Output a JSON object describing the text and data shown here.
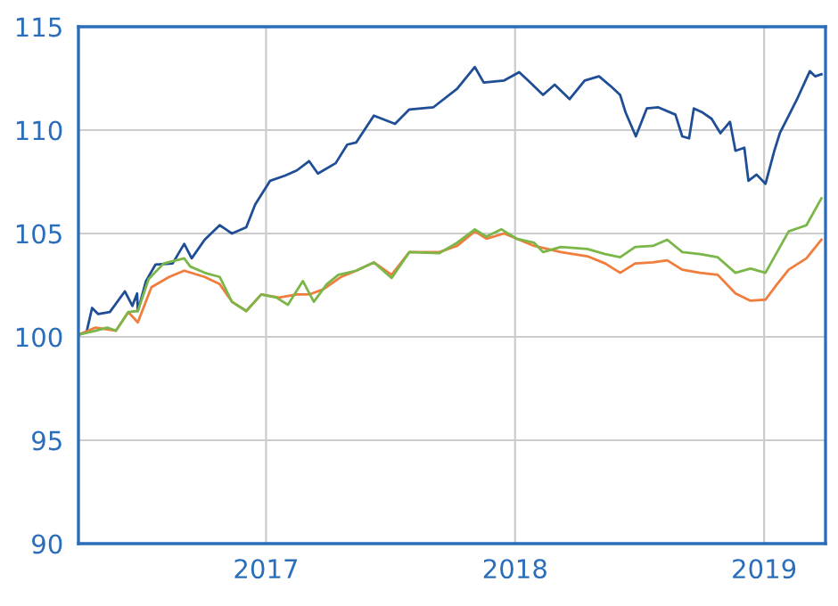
{
  "chart_data": {
    "type": "line",
    "xlim": [
      "2016-04-01",
      "2019-04-01"
    ],
    "ylim": [
      90,
      115
    ],
    "yticks": [
      90,
      95,
      100,
      105,
      110,
      115
    ],
    "xticks": [
      {
        "value": "2017-01-01",
        "label": "2017"
      },
      {
        "value": "2018-01-01",
        "label": "2018"
      },
      {
        "value": "2019-01-01",
        "label": "2019"
      }
    ],
    "grid": true,
    "legend": false,
    "marker": "none",
    "line_style": "solid",
    "series": [
      {
        "color": "#1f4e96",
        "x": [
          "2016-04-01",
          "2016-04-13",
          "2016-04-21",
          "2016-04-30",
          "2016-05-17",
          "2016-06-08",
          "2016-06-19",
          "2016-06-26",
          "2016-06-27",
          "2016-07-09",
          "2016-07-23",
          "2016-08-17",
          "2016-09-03",
          "2016-09-14",
          "2016-10-03",
          "2016-10-25",
          "2016-11-12",
          "2016-12-03",
          "2016-12-16",
          "2017-01-07",
          "2017-01-29",
          "2017-02-15",
          "2017-03-05",
          "2017-03-18",
          "2017-04-13",
          "2017-04-30",
          "2017-05-13",
          "2017-06-08",
          "2017-07-09",
          "2017-07-30",
          "2017-09-03",
          "2017-10-08",
          "2017-11-03",
          "2017-11-16",
          "2017-12-16",
          "2018-01-07",
          "2018-01-20",
          "2018-02-11",
          "2018-02-28",
          "2018-03-22",
          "2018-04-13",
          "2018-05-04",
          "2018-05-22",
          "2018-06-04",
          "2018-06-12",
          "2018-06-27",
          "2018-07-13",
          "2018-07-30",
          "2018-08-24",
          "2018-09-03",
          "2018-09-13",
          "2018-09-20",
          "2018-10-03",
          "2018-10-16",
          "2018-10-29",
          "2018-11-12",
          "2018-11-20",
          "2018-12-03",
          "2018-12-09",
          "2018-12-21",
          "2019-01-03",
          "2019-01-16",
          "2019-01-24",
          "2019-02-06",
          "2019-02-19",
          "2019-03-09",
          "2019-03-17",
          "2019-03-26"
        ],
        "values": [
          100.1,
          100.25,
          101.4,
          101.1,
          101.2,
          102.2,
          101.5,
          102.1,
          101.25,
          102.7,
          103.5,
          103.55,
          104.5,
          103.8,
          104.7,
          105.4,
          105.0,
          105.3,
          106.4,
          107.55,
          107.8,
          108.05,
          108.5,
          107.9,
          108.4,
          109.3,
          109.4,
          110.7,
          110.3,
          111.0,
          111.1,
          112.0,
          113.05,
          112.3,
          112.4,
          112.8,
          112.4,
          111.7,
          112.2,
          111.5,
          112.4,
          112.6,
          112.1,
          111.7,
          110.85,
          109.7,
          111.05,
          111.1,
          110.75,
          109.7,
          109.6,
          111.05,
          110.85,
          110.55,
          109.85,
          110.4,
          109.0,
          109.15,
          107.55,
          107.85,
          107.4,
          109.0,
          109.85,
          110.7,
          111.55,
          112.85,
          112.6,
          112.7
        ]
      },
      {
        "color": "#f07d3c",
        "x": [
          "2016-04-01",
          "2016-04-26",
          "2016-05-26",
          "2016-06-13",
          "2016-06-27",
          "2016-07-17",
          "2016-08-12",
          "2016-09-03",
          "2016-10-03",
          "2016-10-25",
          "2016-11-12",
          "2016-12-03",
          "2016-12-25",
          "2017-01-20",
          "2017-02-15",
          "2017-03-05",
          "2017-03-26",
          "2017-04-21",
          "2017-05-13",
          "2017-06-08",
          "2017-07-04",
          "2017-07-30",
          "2017-09-12",
          "2017-10-08",
          "2017-11-03",
          "2017-11-20",
          "2017-12-16",
          "2018-01-03",
          "2018-01-29",
          "2018-03-09",
          "2018-04-17",
          "2018-05-13",
          "2018-06-04",
          "2018-06-26",
          "2018-07-22",
          "2018-08-12",
          "2018-09-03",
          "2018-09-29",
          "2018-10-25",
          "2018-11-20",
          "2018-12-12",
          "2019-01-03",
          "2019-01-20",
          "2019-02-06",
          "2019-03-04",
          "2019-03-26"
        ],
        "values": [
          100.1,
          100.45,
          100.3,
          101.2,
          100.7,
          102.4,
          102.9,
          103.2,
          102.9,
          102.55,
          101.7,
          101.25,
          102.05,
          101.9,
          102.05,
          102.05,
          102.3,
          102.9,
          103.2,
          103.6,
          103.0,
          104.1,
          104.1,
          104.4,
          105.1,
          104.75,
          105.0,
          104.75,
          104.4,
          104.1,
          103.9,
          103.55,
          103.1,
          103.55,
          103.6,
          103.7,
          103.25,
          103.1,
          103.0,
          102.1,
          101.75,
          101.8,
          102.55,
          103.25,
          103.8,
          104.7
        ]
      },
      {
        "color": "#7ab648",
        "x": [
          "2016-04-01",
          "2016-04-26",
          "2016-05-13",
          "2016-05-26",
          "2016-06-13",
          "2016-06-27",
          "2016-07-13",
          "2016-08-04",
          "2016-09-03",
          "2016-09-12",
          "2016-10-03",
          "2016-10-25",
          "2016-11-12",
          "2016-12-03",
          "2016-12-25",
          "2017-01-16",
          "2017-02-02",
          "2017-02-24",
          "2017-03-12",
          "2017-03-31",
          "2017-04-17",
          "2017-05-13",
          "2017-06-08",
          "2017-07-04",
          "2017-07-30",
          "2017-09-12",
          "2017-10-08",
          "2017-11-03",
          "2017-11-20",
          "2017-12-12",
          "2018-01-03",
          "2018-01-29",
          "2018-02-11",
          "2018-03-09",
          "2018-04-17",
          "2018-05-13",
          "2018-06-04",
          "2018-06-26",
          "2018-07-22",
          "2018-08-12",
          "2018-09-03",
          "2018-09-29",
          "2018-10-25",
          "2018-11-20",
          "2018-12-12",
          "2019-01-03",
          "2019-01-20",
          "2019-02-06",
          "2019-03-04",
          "2019-03-26"
        ],
        "values": [
          100.1,
          100.3,
          100.45,
          100.3,
          101.2,
          101.25,
          102.8,
          103.55,
          103.8,
          103.4,
          103.1,
          102.9,
          101.7,
          101.25,
          102.05,
          101.9,
          101.55,
          102.7,
          101.7,
          102.55,
          103.0,
          103.2,
          103.6,
          102.85,
          104.1,
          104.05,
          104.55,
          105.2,
          104.85,
          105.2,
          104.75,
          104.55,
          104.1,
          104.35,
          104.25,
          104.0,
          103.85,
          104.35,
          104.4,
          104.7,
          104.1,
          104.0,
          103.85,
          103.1,
          103.3,
          103.1,
          104.1,
          105.1,
          105.4,
          106.7
        ]
      }
    ]
  }
}
